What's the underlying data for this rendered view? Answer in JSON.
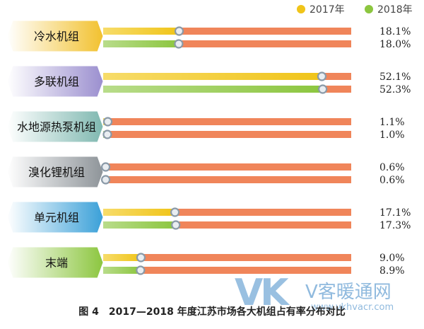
{
  "caption": "图 4　2017—2018 年度江苏市场各大机组占有率分布对比",
  "watermark": {
    "logo": "VK",
    "name": "V客暖通网",
    "url": "www.vkhvacr.com"
  },
  "colors": {
    "series2017": "#f0c419",
    "series2018": "#8cc63f",
    "track": "#f0855a",
    "marker": "#8a9aa8"
  },
  "chart_data": {
    "type": "bar",
    "title": "",
    "xlabel": "",
    "ylabel": "",
    "unit": "%",
    "legend_position": "top-right",
    "categories": [
      "冷水机组",
      "多联机组",
      "水地源热泵机组",
      "溴化锂机组",
      "单元机组",
      "末端"
    ],
    "category_colors": [
      "#f2c12e",
      "#9b8fcf",
      "#7fb8b0",
      "#8e9499",
      "#3aa0d8",
      "#8cc63f"
    ],
    "series": [
      {
        "name": "2017年",
        "values": [
          18.1,
          52.1,
          1.1,
          0.6,
          17.1,
          9.0
        ],
        "labels": [
          "18.1%",
          "52.1%",
          "1.1%",
          "0.6%",
          "17.1%",
          "9.0%"
        ]
      },
      {
        "name": "2018年",
        "values": [
          18.0,
          52.3,
          1.0,
          0.6,
          17.3,
          8.9
        ],
        "labels": [
          "18.0%",
          "52.3%",
          "1.0%",
          "0.6%",
          "17.3%",
          "8.9%"
        ]
      }
    ]
  }
}
